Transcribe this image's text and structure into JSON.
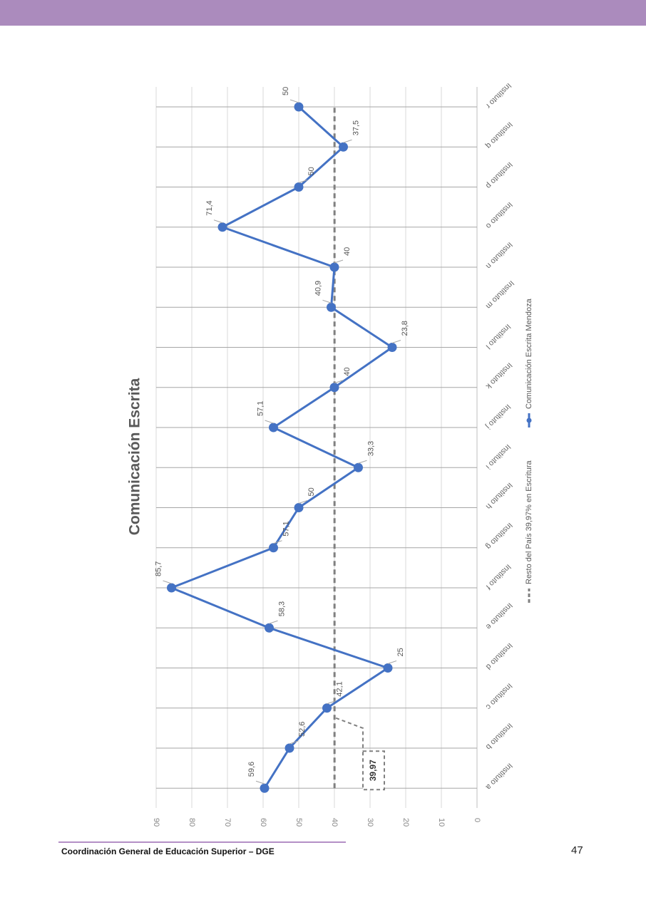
{
  "page": {
    "band_color": "#ab8bbd",
    "footer_text": "Coordinación General de Educación Superior – DGE",
    "footer_rule_color": "#b48fc6",
    "page_number": "47"
  },
  "chart_data": {
    "type": "line",
    "title": "Comunicación Escrita",
    "categories": [
      "Instituto a",
      "Instituto b",
      "Instituto c",
      "Instituto d",
      "Instituto e",
      "Instituto f",
      "Instituto g",
      "Instituto h",
      "Instituto i",
      "Instituto j",
      "Instituto k",
      "Instituto l",
      "Instituto m",
      "Instituto n",
      "Instituto o",
      "Instituto p",
      "Instituto q",
      "Instituto r"
    ],
    "series": [
      {
        "name": "Comunicación Escrita Mendoza",
        "style": "solid-markers",
        "color": "#4472c4",
        "values": [
          59.6,
          52.6,
          42.1,
          25,
          58.3,
          85.7,
          57.1,
          50,
          33.3,
          57.1,
          40,
          23.8,
          40.9,
          40,
          71.4,
          50,
          37.5,
          50
        ],
        "labels": [
          "59,6",
          "52,6",
          "42,1",
          "25",
          "58,3",
          "85,7",
          "57,1",
          "50",
          "33,3",
          "57,1",
          "40",
          "23,8",
          "40,9",
          "40",
          "71,4",
          "50",
          "37,5",
          "50"
        ]
      },
      {
        "name": "Resto del País 39,97% en Escritura",
        "style": "dashed",
        "color": "#808080",
        "values": [
          39.97,
          39.97,
          39.97,
          39.97,
          39.97,
          39.97,
          39.97,
          39.97,
          39.97,
          39.97,
          39.97,
          39.97,
          39.97,
          39.97,
          39.97,
          39.97,
          39.97,
          39.97
        ]
      }
    ],
    "ylim": [
      0,
      90
    ],
    "yticks": [
      "0",
      "10",
      "20",
      "30",
      "40",
      "50",
      "60",
      "70",
      "80",
      "90"
    ],
    "callout": "39,97",
    "grid": true,
    "legend_position": "right",
    "orientation": "rotated-90-clockwise"
  }
}
